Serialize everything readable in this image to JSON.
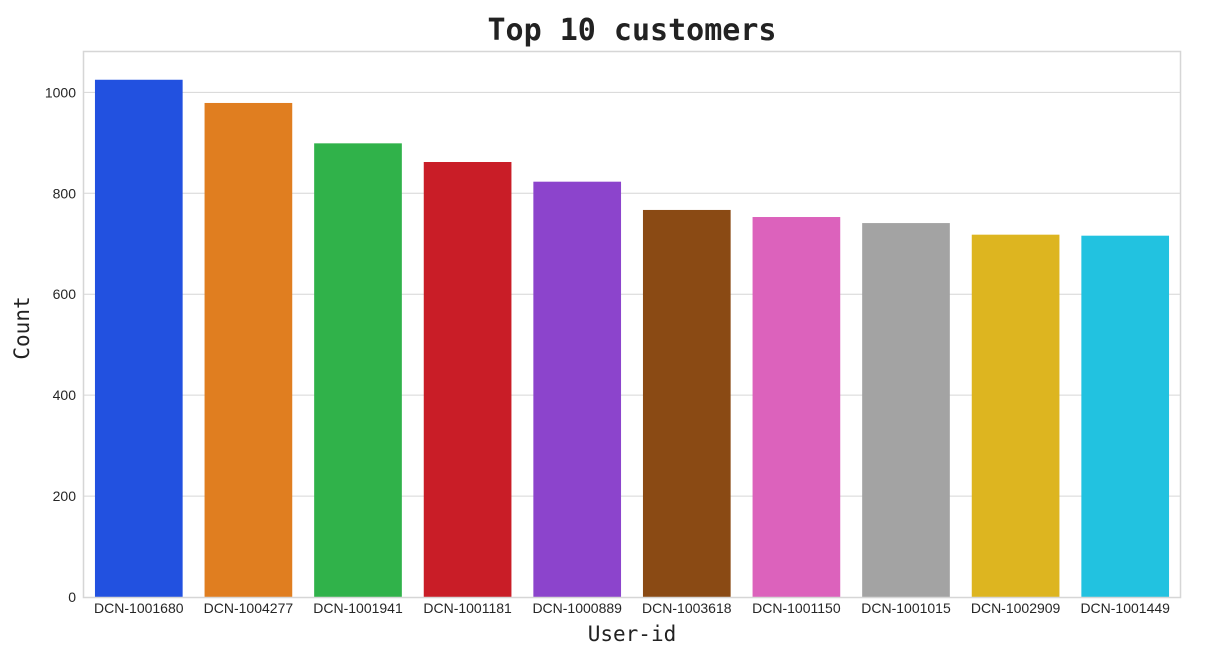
{
  "chart_data": {
    "type": "bar",
    "title": "Top 10 customers",
    "xlabel": "User-id",
    "ylabel": "Count",
    "categories": [
      "DCN-1001680",
      "DCN-1004277",
      "DCN-1001941",
      "DCN-1001181",
      "DCN-1000889",
      "DCN-1003618",
      "DCN-1001150",
      "DCN-1001015",
      "DCN-1002909",
      "DCN-1001449"
    ],
    "values": [
      1025,
      979,
      899,
      862,
      823,
      767,
      753,
      741,
      718,
      716
    ],
    "colors": [
      "#2251e0",
      "#e07e20",
      "#30b24a",
      "#c91d27",
      "#8c44cc",
      "#8a4a14",
      "#dc62bc",
      "#a3a3a3",
      "#ddb520",
      "#22c2e0"
    ],
    "ylim": [
      0,
      1080
    ],
    "yticks": [
      0,
      200,
      400,
      600,
      800,
      1000
    ],
    "grid": true,
    "legend": "none"
  }
}
